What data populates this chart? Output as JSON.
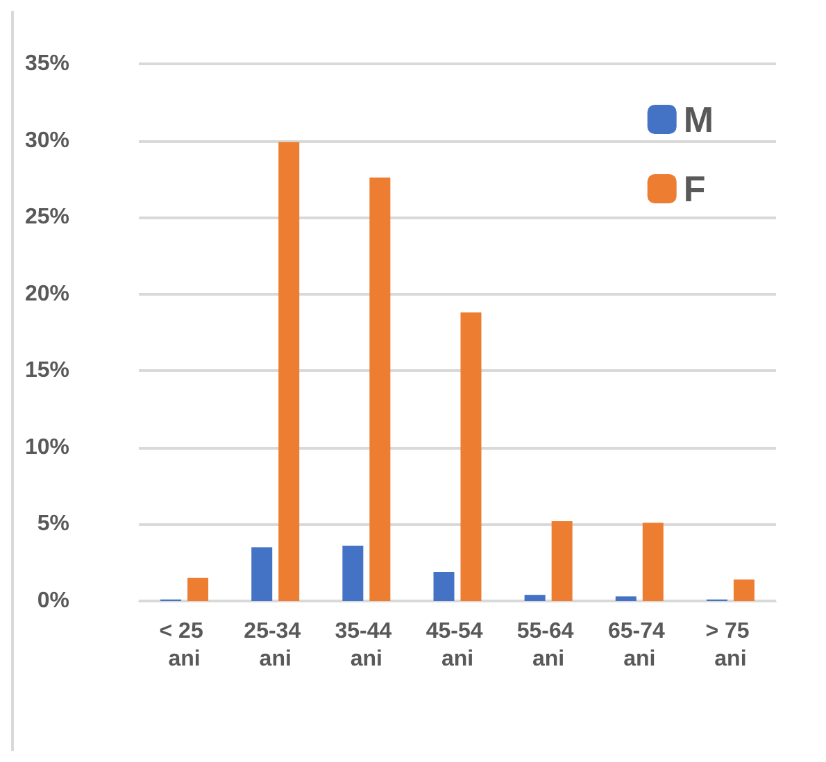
{
  "chart_data": {
    "type": "bar",
    "categories": [
      "< 25 ani",
      "25-34 ani",
      "35-44 ani",
      "45-54 ani",
      "55-64 ani",
      "65-74 ani",
      "> 75 ani"
    ],
    "series": [
      {
        "name": "M",
        "color": "#4472c4",
        "values": [
          0.1,
          3.5,
          3.6,
          1.9,
          0.4,
          0.3,
          0.1
        ]
      },
      {
        "name": "F",
        "color": "#ed7d31",
        "values": [
          1.5,
          29.9,
          27.6,
          18.8,
          5.2,
          5.1,
          1.4
        ]
      }
    ],
    "ylim": [
      0,
      35
    ],
    "yticks": [
      {
        "value": 0,
        "label": "0%"
      },
      {
        "value": 5,
        "label": "5%"
      },
      {
        "value": 10,
        "label": "10%"
      },
      {
        "value": 15,
        "label": "15%"
      },
      {
        "value": 20,
        "label": "20%"
      },
      {
        "value": 25,
        "label": "25%"
      },
      {
        "value": 30,
        "label": "30%"
      },
      {
        "value": 35,
        "label": "35%"
      }
    ],
    "grid": "y",
    "legend": "top right"
  }
}
